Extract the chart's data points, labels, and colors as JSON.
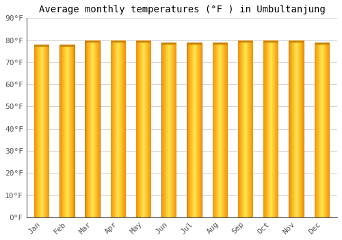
{
  "months": [
    "Jan",
    "Feb",
    "Mar",
    "Apr",
    "May",
    "Jun",
    "Jul",
    "Aug",
    "Sep",
    "Oct",
    "Nov",
    "Dec"
  ],
  "values": [
    78,
    78,
    80,
    80,
    80,
    79,
    79,
    79,
    80,
    80,
    80,
    79
  ],
  "title": "Average monthly temperatures (°F ) in Umbultanjung",
  "ylim": [
    0,
    90
  ],
  "yticks": [
    0,
    10,
    20,
    30,
    40,
    50,
    60,
    70,
    80,
    90
  ],
  "ytick_labels": [
    "0°F",
    "10°F",
    "20°F",
    "30°F",
    "40°F",
    "50°F",
    "60°F",
    "70°F",
    "80°F",
    "90°F"
  ],
  "bar_color_center": "#FFDD55",
  "bar_color_edge": "#F59000",
  "bar_color_top": "#E88000",
  "bar_edge_color": "#CC8800",
  "background_color": "#FFFFFF",
  "grid_color": "#CCCCCC",
  "title_fontsize": 10,
  "tick_fontsize": 8,
  "bar_width": 0.6
}
